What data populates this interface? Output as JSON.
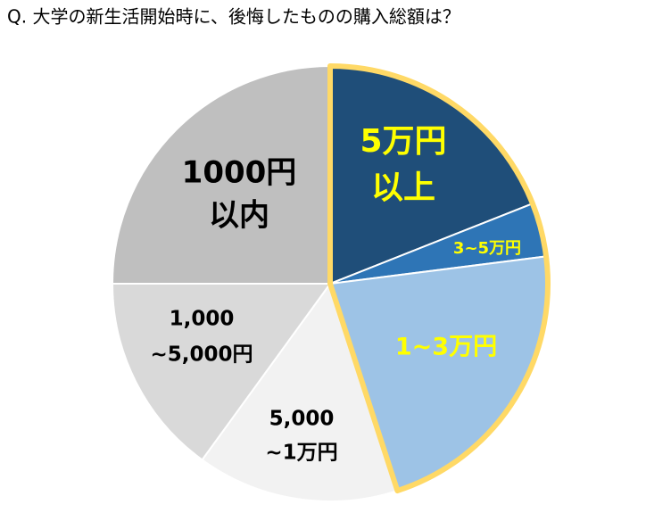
{
  "chart_data": {
    "type": "pie",
    "title": "Q. 大学の新生活開始時に、後悔したものの購入総額は？",
    "categories": [
      [
        "5万円",
        "以上"
      ],
      [
        "3~5万円"
      ],
      [
        "1~3万円"
      ],
      [
        "5,000",
        "~1万円"
      ],
      [
        "1,000",
        "~5,000円"
      ],
      [
        "1000円",
        "以内"
      ]
    ],
    "values": [
      19,
      4,
      22,
      15,
      15,
      25
    ],
    "colors": [
      "#1f4e79",
      "#2e75b6",
      "#9dc3e6",
      "#f2f2f2",
      "#d9d9d9",
      "#bfbfbf"
    ],
    "label_colors": [
      "#ffff00",
      "#ffff00",
      "#ffff00",
      "#000000",
      "#000000",
      "#000000"
    ],
    "highlight": {
      "color": "#ffd966",
      "slices": [
        0,
        1,
        2
      ]
    }
  }
}
